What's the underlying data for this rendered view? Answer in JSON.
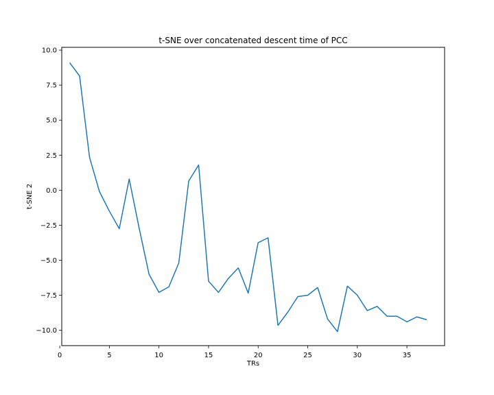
{
  "chart_data": {
    "type": "line",
    "title": "t-SNE over concatenated descent time of PCC",
    "xlabel": "TRs",
    "ylabel": "t-SNE 2",
    "xlim": [
      0.2,
      38.8
    ],
    "ylim": [
      -11.1,
      10.2
    ],
    "x_ticks": [
      0,
      5,
      10,
      15,
      20,
      25,
      30,
      35
    ],
    "y_ticks": [
      10.0,
      7.5,
      5.0,
      2.5,
      0.0,
      -2.5,
      -5.0,
      -7.5,
      -10.0
    ],
    "x_tick_labels": [
      "0",
      "5",
      "10",
      "15",
      "20",
      "25",
      "30",
      "35"
    ],
    "y_tick_labels": [
      "10.0",
      "7.5",
      "5.0",
      "2.5",
      "0.0",
      "−2.5",
      "−5.0",
      "−7.5",
      "−10.0"
    ],
    "grid": false,
    "line_color": "#1f77b4",
    "series": [
      {
        "x": [
          1,
          2,
          3,
          4,
          5,
          6,
          7,
          8,
          9,
          10,
          11,
          12,
          13,
          14,
          15,
          16,
          17,
          18,
          19,
          20,
          21,
          22,
          23,
          24,
          25,
          26,
          27,
          28,
          29,
          30,
          31,
          32,
          33,
          34,
          35,
          36,
          37
        ],
        "values": [
          9.1,
          8.15,
          2.35,
          -0.1,
          -1.5,
          -2.75,
          0.8,
          -2.7,
          -6.0,
          -7.3,
          -6.9,
          -5.2,
          0.65,
          1.8,
          -6.5,
          -7.3,
          -6.3,
          -5.55,
          -7.35,
          -3.75,
          -3.4,
          -9.65,
          -8.7,
          -7.6,
          -7.5,
          -6.95,
          -9.2,
          -10.1,
          -6.85,
          -7.5,
          -8.6,
          -8.3,
          -9.0,
          -9.0,
          -9.4,
          -9.05,
          -9.25
        ]
      }
    ]
  }
}
